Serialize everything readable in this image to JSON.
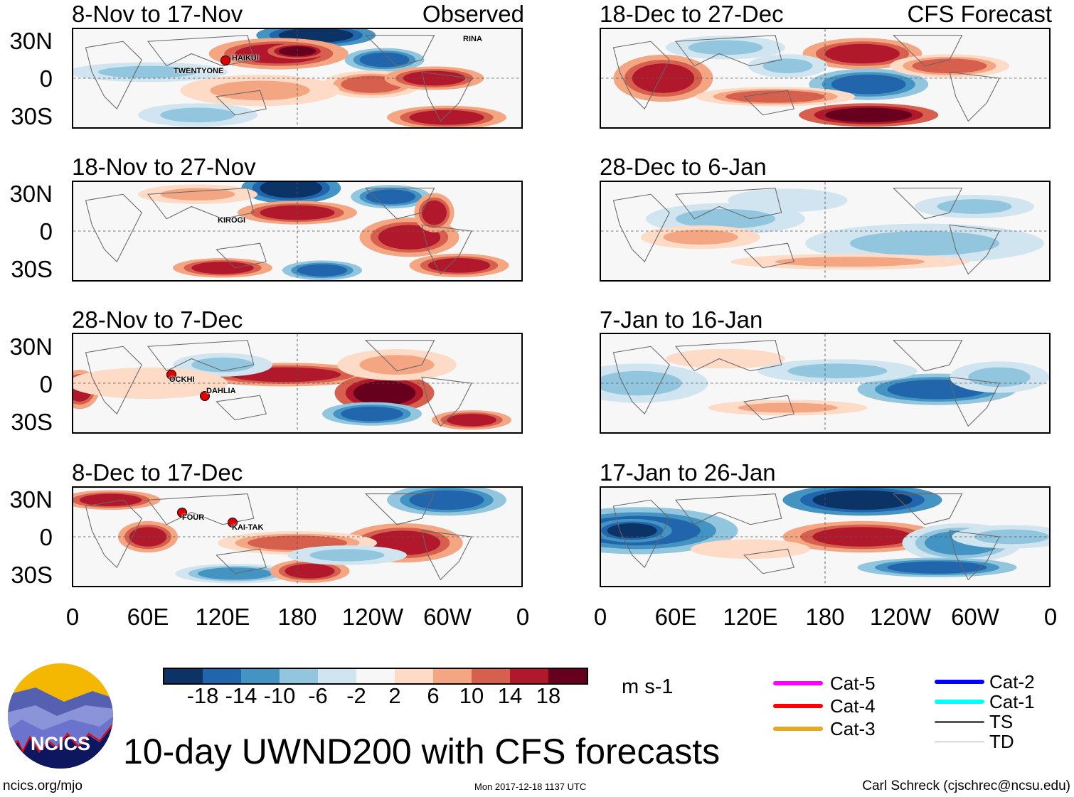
{
  "title": "10-day UWND200 with CFS forecasts",
  "units": "m s-1",
  "site": "ncics.org/mjo",
  "timestamp": "Mon 2017-12-18 1137 UTC",
  "author": "Carl Schreck (cjschrec@ncsu.edu)",
  "logo_text": "NCICS",
  "column_labels": {
    "observed": "Observed",
    "forecast": "CFS Forecast"
  },
  "y_ticks": [
    "30N",
    "0",
    "30S"
  ],
  "x_ticks": [
    "0",
    "60E",
    "120E",
    "180",
    "120W",
    "60W",
    "0"
  ],
  "colorbar": {
    "colors": [
      "#0b3366",
      "#2166ac",
      "#4393c3",
      "#92c5de",
      "#d1e5f0",
      "#f7f7f7",
      "#fddbc7",
      "#f4a582",
      "#d6604d",
      "#b2182b",
      "#67001f"
    ],
    "ticks": [
      "-18",
      "-14",
      "-10",
      "-6",
      "-2",
      "2",
      "6",
      "10",
      "14",
      "18"
    ]
  },
  "legend": [
    {
      "label": "Cat-5",
      "color": "#ff00ff"
    },
    {
      "label": "Cat-4",
      "color": "#ff0000"
    },
    {
      "label": "Cat-3",
      "color": "#e8a820"
    },
    {
      "label": "Cat-2",
      "color": "#0000ff"
    },
    {
      "label": "Cat-1",
      "color": "#00ffff"
    },
    {
      "label": "TS",
      "color": "#555555"
    },
    {
      "label": "TD",
      "color": "#aaaaaa"
    }
  ],
  "panels": [
    {
      "title": "8-Nov to 17-Nov",
      "type": "observed",
      "storms": [
        "TWENTYONE",
        "HAIKUI",
        "RINA"
      ]
    },
    {
      "title": "18-Nov to 27-Nov",
      "type": "observed",
      "storms": [
        "KIROGI"
      ]
    },
    {
      "title": "28-Nov to 7-Dec",
      "type": "observed",
      "storms": [
        "OCKHI",
        "DAHLIA"
      ]
    },
    {
      "title": "8-Dec to 17-Dec",
      "type": "observed",
      "storms": [
        "FOUR",
        "KAI-TAK"
      ]
    },
    {
      "title": "18-Dec to 27-Dec",
      "type": "forecast",
      "storms": []
    },
    {
      "title": "28-Dec to 6-Jan",
      "type": "forecast",
      "storms": []
    },
    {
      "title": "7-Jan to 16-Jan",
      "type": "forecast",
      "storms": []
    },
    {
      "title": "17-Jan to 26-Jan",
      "type": "forecast",
      "storms": []
    }
  ]
}
